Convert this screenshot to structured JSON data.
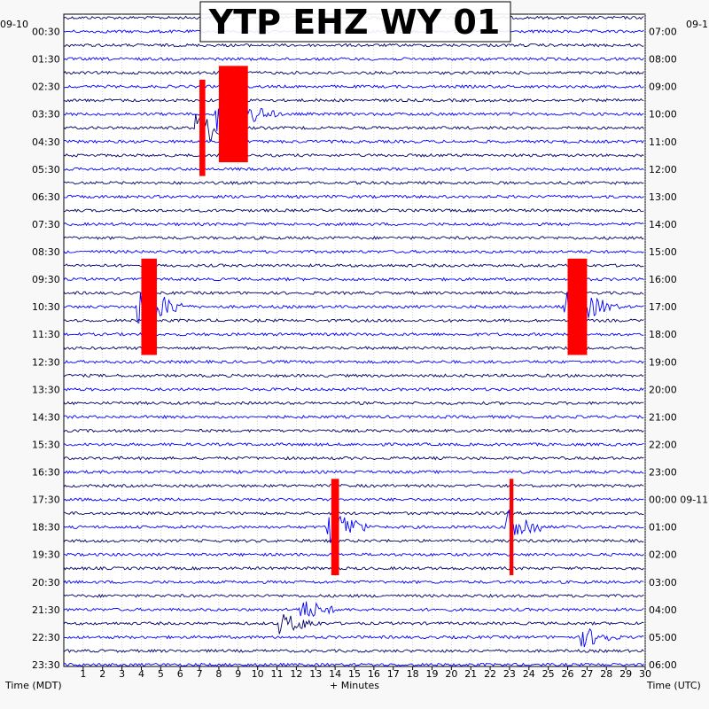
{
  "chart_data": {
    "type": "line",
    "title": "YTP EHZ WY 01",
    "xlabel": "+ Minutes",
    "left_axis_label": "Time (MDT)",
    "right_axis_label": "Time (UTC)",
    "left_date": "09-10",
    "right_date": "09-1",
    "right_date_change_label": "00:00 09-11",
    "xlim": [
      0,
      30
    ],
    "x_ticks": [
      1,
      2,
      3,
      4,
      5,
      6,
      7,
      8,
      9,
      10,
      11,
      12,
      13,
      14,
      15,
      16,
      17,
      18,
      19,
      20,
      21,
      22,
      23,
      24,
      25,
      26,
      27,
      28,
      29,
      30
    ],
    "left_hour_labels": [
      "00:30",
      "01:30",
      "02:30",
      "03:30",
      "04:30",
      "05:30",
      "06:30",
      "07:30",
      "08:30",
      "09:30",
      "10:30",
      "11:30",
      "12:30",
      "13:30",
      "14:30",
      "15:30",
      "16:30",
      "17:30",
      "18:30",
      "19:30",
      "20:30",
      "21:30",
      "22:30",
      "23:30"
    ],
    "right_hour_labels": [
      "07:00",
      "08:00",
      "09:00",
      "10:00",
      "11:00",
      "12:00",
      "13:00",
      "14:00",
      "15:00",
      "16:00",
      "17:00",
      "18:00",
      "19:00",
      "20:00",
      "21:00",
      "22:00",
      "23:00",
      "00:00 09-11",
      "01:00",
      "02:00",
      "03:00",
      "04:00",
      "05:00",
      "06:00"
    ],
    "trace_colors": [
      "#000066",
      "#0000ff"
    ],
    "clip_color": "#ff0000",
    "traces_per_hour": 2,
    "events": [
      {
        "start_min": 7.0,
        "end_min": 7.3,
        "trace": 8,
        "amplitude": "clipped"
      },
      {
        "start_min": 8.0,
        "end_min": 9.5,
        "trace": 7,
        "amplitude": "clipped"
      },
      {
        "start_min": 4.0,
        "end_min": 4.8,
        "trace": 21,
        "amplitude": "clipped"
      },
      {
        "start_min": 13.8,
        "end_min": 14.2,
        "trace": 37,
        "amplitude": "clipped"
      },
      {
        "start_min": 23.0,
        "end_min": 23.2,
        "trace": 37,
        "amplitude": "clipped"
      },
      {
        "start_min": 26.0,
        "end_min": 27.0,
        "trace": 21,
        "amplitude": "clipped"
      },
      {
        "start_min": 12.3,
        "end_min": 12.5,
        "trace": 43,
        "amplitude": "large"
      },
      {
        "start_min": 11.3,
        "end_min": 11.6,
        "trace": 44,
        "amplitude": "large"
      },
      {
        "start_min": 26.8,
        "end_min": 27.0,
        "trace": 45,
        "amplitude": "large"
      }
    ]
  }
}
